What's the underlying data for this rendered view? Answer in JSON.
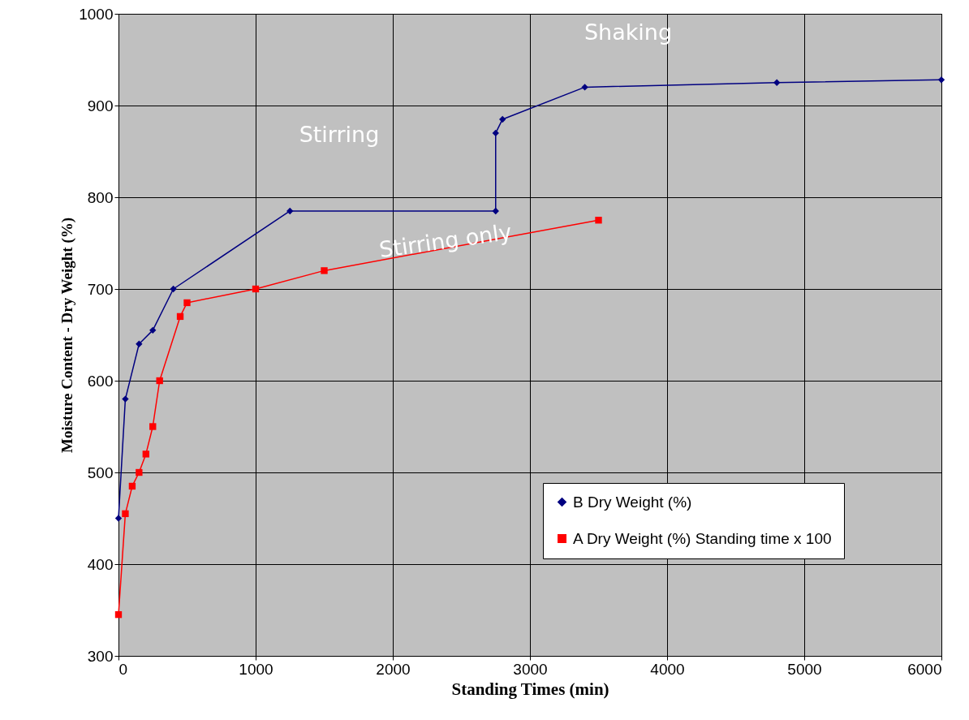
{
  "chart_data": {
    "type": "line",
    "xlabel": "Standing Times (min)",
    "ylabel": "Moisture Content - Dry Weight (%)",
    "xlim": [
      0,
      6000
    ],
    "xticks": [
      0,
      1000,
      2000,
      3000,
      4000,
      5000,
      6000
    ],
    "ylim": [
      300,
      1000
    ],
    "yticks": [
      300,
      400,
      500,
      600,
      700,
      800,
      900,
      1000
    ],
    "grid": true,
    "legend": "bottom right",
    "series": [
      {
        "name": "B Dry Weight (%)",
        "color": "#000080",
        "marker": "diamond",
        "x": [
          0,
          50,
          150,
          250,
          400,
          1250,
          2750,
          2750,
          2800,
          3400,
          4800,
          6000
        ],
        "values": [
          450,
          580,
          640,
          655,
          700,
          785,
          785,
          870,
          885,
          920,
          925,
          928
        ]
      },
      {
        "name": "A Dry Weight (%) Standing time x 100",
        "color": "#ff0000",
        "marker": "square",
        "x": [
          0,
          50,
          100,
          150,
          200,
          250,
          300,
          450,
          500,
          1000,
          1500,
          3500
        ],
        "values": [
          345,
          455,
          485,
          500,
          520,
          550,
          600,
          670,
          685,
          700,
          720,
          775
        ]
      }
    ],
    "annotations": [
      "Shaking",
      "Stirring",
      "Stirring only"
    ]
  }
}
